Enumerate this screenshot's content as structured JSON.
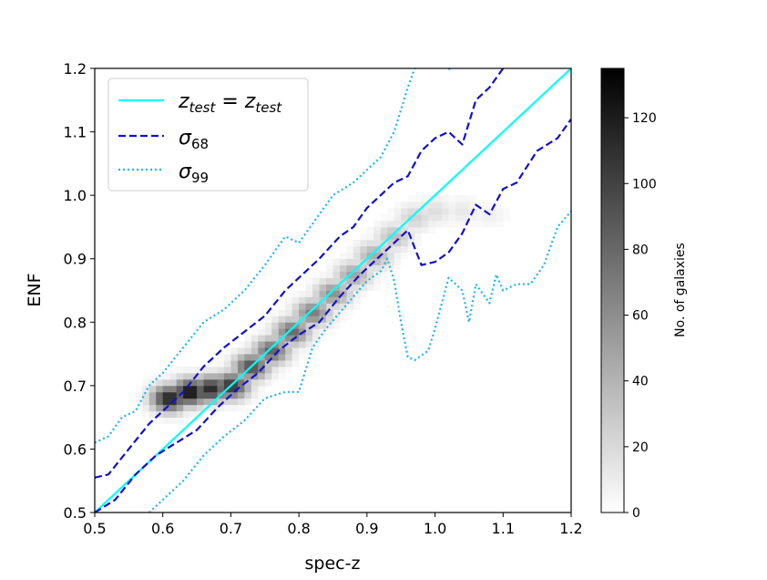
{
  "chart_data": {
    "type": "heatmap",
    "title": "",
    "xlabel": "spec-z",
    "ylabel": "ENF",
    "xlim": [
      0.5,
      1.2
    ],
    "ylim": [
      0.5,
      1.2
    ],
    "xticks": [
      "0.5",
      "0.6",
      "0.7",
      "0.8",
      "0.9",
      "1.0",
      "1.1",
      "1.2"
    ],
    "yticks": [
      "0.5",
      "0.6",
      "0.7",
      "0.8",
      "0.9",
      "1.0",
      "1.1",
      "1.2"
    ],
    "grid": false,
    "legend_placement": "top-left",
    "colorbar": {
      "label": "No. of galaxies",
      "range": [
        0,
        135
      ],
      "ticks": [
        "0",
        "20",
        "40",
        "60",
        "80",
        "100",
        "120"
      ],
      "colormap": "greys"
    },
    "heatmap_ridge": {
      "description_points": [
        {
          "x": 0.61,
          "y": 0.68,
          "count": 120
        },
        {
          "x": 0.64,
          "y": 0.69,
          "count": 130
        },
        {
          "x": 0.67,
          "y": 0.695,
          "count": 115
        },
        {
          "x": 0.7,
          "y": 0.7,
          "count": 110
        },
        {
          "x": 0.73,
          "y": 0.73,
          "count": 95
        },
        {
          "x": 0.76,
          "y": 0.755,
          "count": 85
        },
        {
          "x": 0.79,
          "y": 0.785,
          "count": 80
        },
        {
          "x": 0.82,
          "y": 0.815,
          "count": 70
        },
        {
          "x": 0.85,
          "y": 0.845,
          "count": 60
        },
        {
          "x": 0.88,
          "y": 0.875,
          "count": 50
        },
        {
          "x": 0.91,
          "y": 0.905,
          "count": 45
        },
        {
          "x": 0.94,
          "y": 0.935,
          "count": 35
        },
        {
          "x": 0.97,
          "y": 0.965,
          "count": 25
        },
        {
          "x": 1.0,
          "y": 0.975,
          "count": 18
        },
        {
          "x": 1.04,
          "y": 0.975,
          "count": 12
        },
        {
          "x": 1.08,
          "y": 0.97,
          "count": 8
        }
      ]
    },
    "series": [
      {
        "name": "z_test = z_test",
        "style": "solid",
        "color": "#00ffff",
        "x": [
          0.5,
          1.2
        ],
        "y": [
          0.5,
          1.2
        ]
      },
      {
        "name": "σ68",
        "style": "dashed",
        "color": "#1010d0",
        "upper": {
          "x": [
            0.5,
            0.52,
            0.55,
            0.58,
            0.6,
            0.63,
            0.66,
            0.69,
            0.72,
            0.75,
            0.78,
            0.8,
            0.83,
            0.86,
            0.88,
            0.9,
            0.92,
            0.94,
            0.96,
            0.98,
            1.0,
            1.02,
            1.04,
            1.06,
            1.08,
            1.1
          ],
          "y": [
            0.555,
            0.56,
            0.6,
            0.64,
            0.66,
            0.69,
            0.73,
            0.76,
            0.785,
            0.81,
            0.85,
            0.87,
            0.9,
            0.935,
            0.95,
            0.98,
            1.0,
            1.02,
            1.03,
            1.07,
            1.09,
            1.1,
            1.08,
            1.15,
            1.17,
            1.2
          ]
        },
        "lower": {
          "x": [
            0.5,
            0.53,
            0.56,
            0.59,
            0.62,
            0.65,
            0.68,
            0.71,
            0.74,
            0.77,
            0.8,
            0.83,
            0.86,
            0.89,
            0.92,
            0.95,
            0.96,
            0.98,
            1.0,
            1.02,
            1.04,
            1.06,
            1.08,
            1.1,
            1.12,
            1.15,
            1.18,
            1.2
          ],
          "y": [
            0.5,
            0.52,
            0.56,
            0.59,
            0.61,
            0.63,
            0.665,
            0.695,
            0.72,
            0.755,
            0.78,
            0.8,
            0.84,
            0.875,
            0.905,
            0.935,
            0.945,
            0.89,
            0.895,
            0.91,
            0.94,
            0.985,
            0.97,
            1.01,
            1.02,
            1.07,
            1.09,
            1.12
          ]
        }
      },
      {
        "name": "σ99",
        "style": "dotted",
        "color": "#1fb4ee",
        "upper": {
          "x": [
            0.5,
            0.52,
            0.54,
            0.56,
            0.58,
            0.6,
            0.63,
            0.66,
            0.69,
            0.72,
            0.75,
            0.78,
            0.8,
            0.82,
            0.85,
            0.88,
            0.9,
            0.92,
            0.94,
            0.96,
            0.97
          ],
          "y": [
            0.61,
            0.62,
            0.65,
            0.66,
            0.7,
            0.72,
            0.76,
            0.8,
            0.82,
            0.85,
            0.89,
            0.935,
            0.925,
            0.955,
            1.0,
            1.02,
            1.04,
            1.06,
            1.1,
            1.17,
            1.2
          ]
        },
        "upper_fragment": {
          "x": [
            1.02,
            1.025
          ],
          "y": [
            1.2,
            1.195
          ]
        },
        "lower": {
          "x": [
            0.58,
            0.6,
            0.63,
            0.66,
            0.69,
            0.72,
            0.75,
            0.78,
            0.8,
            0.82,
            0.84,
            0.86,
            0.88,
            0.9,
            0.92,
            0.93,
            0.94,
            0.95,
            0.96,
            0.97,
            0.99,
            1.0,
            1.02,
            1.04,
            1.05,
            1.06,
            1.08,
            1.09,
            1.1,
            1.12,
            1.14,
            1.16,
            1.18,
            1.2
          ],
          "y": [
            0.5,
            0.52,
            0.55,
            0.59,
            0.62,
            0.645,
            0.68,
            0.69,
            0.69,
            0.76,
            0.79,
            0.815,
            0.84,
            0.865,
            0.88,
            0.9,
            0.865,
            0.8,
            0.745,
            0.74,
            0.755,
            0.79,
            0.87,
            0.85,
            0.8,
            0.86,
            0.83,
            0.875,
            0.85,
            0.86,
            0.86,
            0.89,
            0.95,
            0.975
          ]
        }
      }
    ]
  }
}
